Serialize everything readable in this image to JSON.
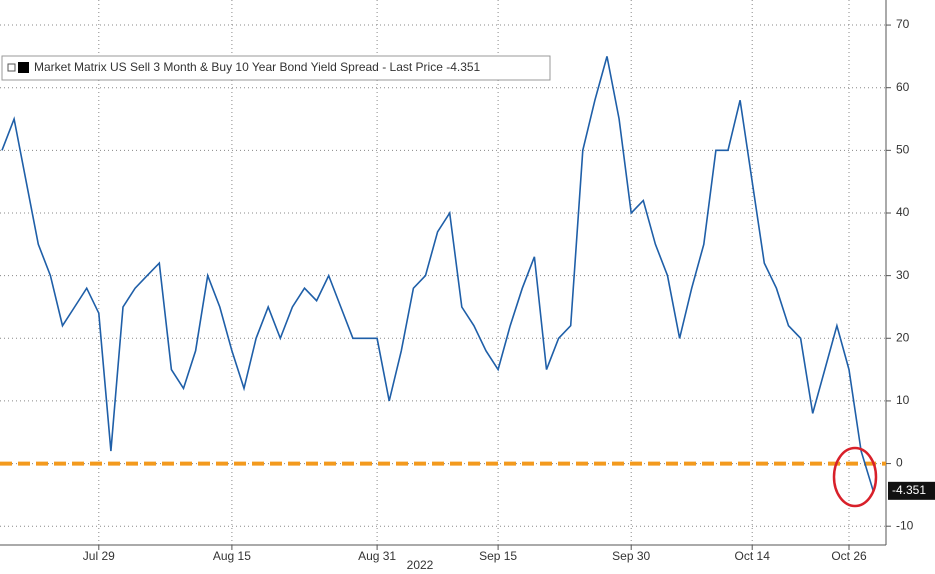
{
  "chart_data": {
    "type": "line",
    "x": [
      "2022-07-19",
      "2022-07-20",
      "2022-07-21",
      "2022-07-22",
      "2022-07-25",
      "2022-07-26",
      "2022-07-27",
      "2022-07-28",
      "2022-07-29",
      "2022-08-01",
      "2022-08-02",
      "2022-08-03",
      "2022-08-04",
      "2022-08-05",
      "2022-08-08",
      "2022-08-09",
      "2022-08-10",
      "2022-08-11",
      "2022-08-12",
      "2022-08-15",
      "2022-08-16",
      "2022-08-17",
      "2022-08-18",
      "2022-08-19",
      "2022-08-22",
      "2022-08-23",
      "2022-08-24",
      "2022-08-25",
      "2022-08-26",
      "2022-08-29",
      "2022-08-30",
      "2022-08-31",
      "2022-09-01",
      "2022-09-02",
      "2022-09-06",
      "2022-09-07",
      "2022-09-08",
      "2022-09-09",
      "2022-09-12",
      "2022-09-13",
      "2022-09-14",
      "2022-09-15",
      "2022-09-16",
      "2022-09-19",
      "2022-09-20",
      "2022-09-21",
      "2022-09-22",
      "2022-09-23",
      "2022-09-26",
      "2022-09-27",
      "2022-09-28",
      "2022-09-29",
      "2022-09-30",
      "2022-10-03",
      "2022-10-04",
      "2022-10-05",
      "2022-10-06",
      "2022-10-07",
      "2022-10-10",
      "2022-10-11",
      "2022-10-12",
      "2022-10-13",
      "2022-10-14",
      "2022-10-17",
      "2022-10-18",
      "2022-10-19",
      "2022-10-20",
      "2022-10-21",
      "2022-10-24",
      "2022-10-25",
      "2022-10-26",
      "2022-10-27",
      "2022-10-28"
    ],
    "series": [
      {
        "name": "Market Matrix US Sell 3 Month & Buy 10 Year Bond Yield Spread - Last Price -4.351",
        "color": "#1f5fa8",
        "values": [
          50,
          55,
          45,
          35,
          30,
          22,
          25,
          28,
          24,
          2,
          25,
          28,
          30,
          32,
          15,
          12,
          18,
          30,
          25,
          18,
          12,
          20,
          25,
          20,
          25,
          28,
          26,
          30,
          25,
          20,
          20,
          20,
          10,
          18,
          28,
          30,
          37,
          40,
          25,
          22,
          18,
          15,
          22,
          28,
          33,
          15,
          20,
          22,
          50,
          58,
          65,
          55,
          40,
          42,
          35,
          30,
          20,
          28,
          35,
          50,
          50,
          58,
          45,
          32,
          28,
          22,
          20,
          8,
          15,
          22,
          15,
          2,
          -4.351
        ]
      }
    ],
    "last_price": -4.351,
    "xlabel": "2022",
    "xticks": [
      {
        "value": "2022-07-29",
        "label": "Jul 29"
      },
      {
        "value": "2022-08-15",
        "label": "Aug 15"
      },
      {
        "value": "2022-08-31",
        "label": "Aug 31"
      },
      {
        "value": "2022-09-15",
        "label": "Sep 15"
      },
      {
        "value": "2022-09-30",
        "label": "Sep 30"
      },
      {
        "value": "2022-10-14",
        "label": "Oct 14"
      },
      {
        "value": "2022-10-26",
        "label": "Oct 26"
      }
    ],
    "ylim": [
      -13,
      74
    ],
    "yticks": [
      -10,
      0,
      10,
      20,
      30,
      40,
      50,
      60,
      70
    ],
    "grid": true,
    "reference_line": {
      "value": 0,
      "color": "#f39a1e"
    }
  }
}
